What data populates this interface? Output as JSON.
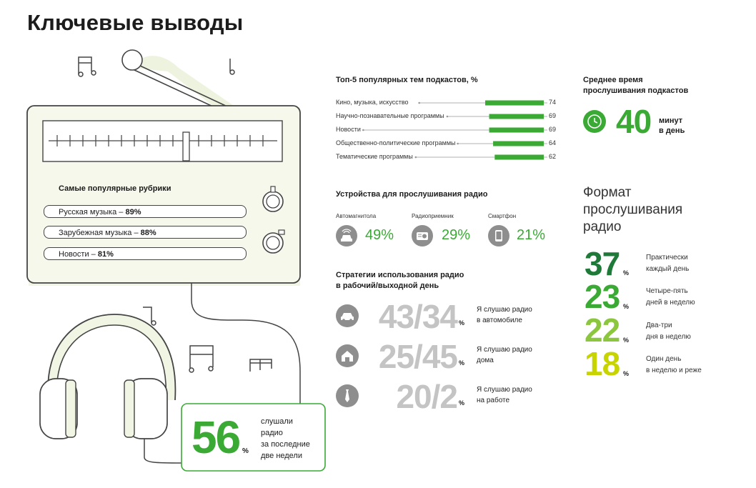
{
  "title": "Ключевые выводы",
  "rubrics": {
    "title": "Самые популярные рубрики",
    "items": [
      {
        "label": "Русская музыка",
        "value": "89%"
      },
      {
        "label": "Зарубежная музыка",
        "value": "88%"
      },
      {
        "label": "Новости",
        "value": "81%"
      }
    ]
  },
  "listened": {
    "value": "56",
    "unit": "%",
    "text_lines": [
      "слушали",
      "радио",
      "за последние",
      "две недели"
    ]
  },
  "podcasts": {
    "title": "Топ-5 популярных тем подкастов, %"
  },
  "devices": {
    "title": "Устройства для прослушивания радио",
    "items": [
      {
        "label": "Автомагнитола",
        "value": "49%",
        "icon": "car-radio-icon"
      },
      {
        "label": "Радиоприемник",
        "value": "29%",
        "icon": "radio-icon"
      },
      {
        "label": "Смартфон",
        "value": "21%",
        "icon": "smartphone-icon"
      }
    ]
  },
  "strategies": {
    "title_lines": [
      "Стратегии использования радио",
      "в рабочий/выходной день"
    ],
    "items": [
      {
        "value": "43/34",
        "unit": "%",
        "text_lines": [
          "Я слушаю радио",
          "в автомобиле"
        ],
        "icon": "car-icon"
      },
      {
        "value": "25/45",
        "unit": "%",
        "text_lines": [
          "Я слушаю радио",
          "дома"
        ],
        "icon": "house-icon"
      },
      {
        "value": "20/2",
        "unit": "%",
        "text_lines": [
          "Я слушаю радио",
          "на работе"
        ],
        "icon": "tie-icon"
      }
    ]
  },
  "avg_time": {
    "title_lines": [
      "Среднее время",
      "прослушивания подкастов"
    ],
    "value": "40",
    "unit_lines": [
      "минут",
      "в день"
    ]
  },
  "format": {
    "title_lines": [
      "Формат",
      "прослушивания",
      "радио"
    ],
    "items": [
      {
        "value": "37",
        "unit": "%",
        "text_lines": [
          "Практически",
          "каждый день"
        ],
        "color": "#1f7a3a"
      },
      {
        "value": "23",
        "unit": "%",
        "text_lines": [
          "Четыре-пять",
          "дней в неделю"
        ],
        "color": "#3aaa35"
      },
      {
        "value": "22",
        "unit": "%",
        "text_lines": [
          "Два-три",
          "дня в неделю"
        ],
        "color": "#8cc63f"
      },
      {
        "value": "18",
        "unit": "%",
        "text_lines": [
          "Один день",
          "в неделю и реже"
        ],
        "color": "#c8d400"
      }
    ]
  },
  "colors": {
    "accent": "#3aaa35",
    "light_fill": "#eef3df",
    "muted": "#c4c4c4"
  },
  "chart_data": {
    "type": "bar",
    "title": "Топ-5 популярных тем подкастов, %",
    "categories": [
      "Кино, музыка, искусство",
      "Научно-познавательные программы",
      "Новости",
      "Общественно-политические программы",
      "Тематические программы"
    ],
    "values": [
      74,
      69,
      69,
      64,
      62
    ],
    "xlim": [
      0,
      74
    ],
    "orientation": "horizontal",
    "color": "#3aaa35"
  }
}
